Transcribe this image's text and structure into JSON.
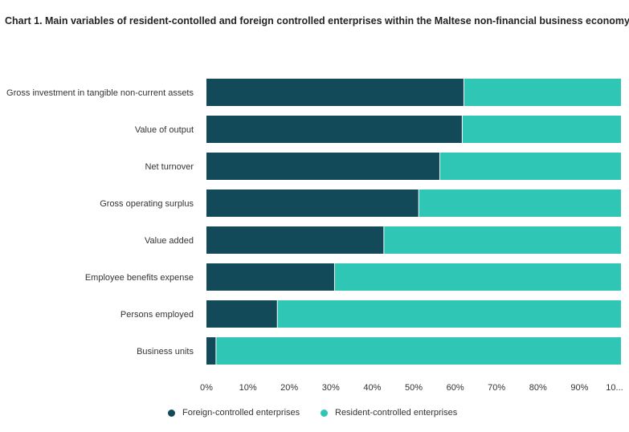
{
  "title": "Chart 1. Main variables of resident-contolled and foreign controlled enterprises within the Maltese non-financial business economy",
  "colors": {
    "foreign": "#124a5a",
    "resident": "#2fc6b5",
    "text": "#333333"
  },
  "legend": {
    "foreign_label": "Foreign-controlled enterprises",
    "resident_label": "Resident-controlled enterprises"
  },
  "chart_data": {
    "type": "bar",
    "orientation": "horizontal",
    "stacked": "percent",
    "categories": [
      "Gross investment in tangible non-current assets",
      "Value of output",
      "Net turnover",
      "Gross operating surplus",
      "Value added",
      "Employee benefits expense",
      "Persons employed",
      "Business units"
    ],
    "series": [
      {
        "name": "Foreign-controlled enterprises",
        "values": [
          62.2,
          61.8,
          56.4,
          51.3,
          42.9,
          31.0,
          17.2,
          2.4
        ]
      },
      {
        "name": "Resident-controlled enterprises",
        "values": [
          37.8,
          38.2,
          43.6,
          48.7,
          57.1,
          69.0,
          82.8,
          97.6
        ]
      }
    ],
    "xlim": [
      0,
      100
    ],
    "xticks": [
      "0%",
      "10%",
      "20%",
      "30%",
      "40%",
      "50%",
      "60%",
      "70%",
      "80%",
      "90%",
      "10..."
    ],
    "legend_position": "bottom"
  }
}
